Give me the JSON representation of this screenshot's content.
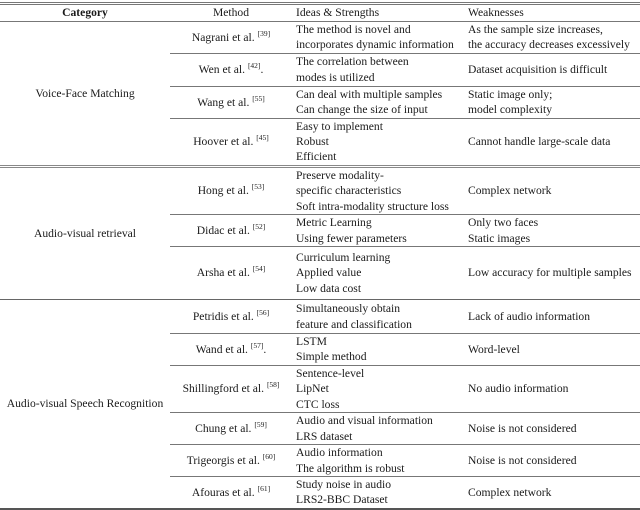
{
  "headers": [
    "Category",
    "Method",
    "Ideas & Strengths",
    "Weaknesses"
  ],
  "groups": [
    {
      "category": "Voice-Face Matching",
      "rows": [
        {
          "method": "Nagrani et al.",
          "ref": "[39]",
          "suffix": "",
          "ideas": [
            "The method is novel and",
            "incorporates dynamic information"
          ],
          "weak": [
            "As the sample size increases,",
            "the accuracy decreases excessively"
          ]
        },
        {
          "method": "Wen et al.",
          "ref": "[42]",
          "suffix": ".",
          "ideas": [
            "The correlation between",
            "modes is utilized"
          ],
          "weak": [
            "Dataset acquisition is difficult"
          ]
        },
        {
          "method": "Wang et al.",
          "ref": "[55]",
          "suffix": "",
          "ideas": [
            "Can deal with multiple samples",
            "Can change the size of input"
          ],
          "weak": [
            "Static image only;",
            "model complexity"
          ]
        },
        {
          "method": "Hoover et al.",
          "ref": "[45]",
          "suffix": "",
          "ideas": [
            "Easy to implement",
            "Robust",
            "Efficient"
          ],
          "weak": [
            "Cannot handle large-scale data"
          ]
        }
      ]
    },
    {
      "category": "Audio-visual retrieval",
      "rows": [
        {
          "method": "Hong et al.",
          "ref": "[53]",
          "suffix": "",
          "ideas": [
            "Preserve modality-",
            "specific characteristics",
            "Soft intra-modality structure loss"
          ],
          "weak": [
            "Complex network"
          ]
        },
        {
          "method": "Didac et al.",
          "ref": "[52]",
          "suffix": "",
          "ideas": [
            "Metric Learning",
            "Using fewer parameters"
          ],
          "weak": [
            "Only two faces",
            "Static images"
          ]
        },
        {
          "method": "Arsha et al.",
          "ref": "[54]",
          "suffix": "",
          "ideas": [
            "Curriculum learning",
            "Applied value",
            "Low data cost"
          ],
          "weak": [
            "Low accuracy for multiple samples"
          ]
        }
      ]
    },
    {
      "category": "Audio-visual Speech Recognition",
      "rows": [
        {
          "method": "Petridis et al.",
          "ref": "[56]",
          "suffix": "",
          "ideas": [
            "Simultaneously obtain",
            "feature and classification"
          ],
          "weak": [
            "Lack of audio information"
          ]
        },
        {
          "method": "Wand et al.",
          "ref": "[57]",
          "suffix": ".",
          "ideas": [
            "LSTM",
            "Simple method"
          ],
          "weak": [
            "Word-level"
          ]
        },
        {
          "method": "Shillingford et al.",
          "ref": "[58]",
          "suffix": "",
          "ideas": [
            "Sentence-level",
            "LipNet",
            "CTC loss"
          ],
          "weak": [
            "No audio information"
          ]
        },
        {
          "method": "Chung et al.",
          "ref": "[59]",
          "suffix": "",
          "ideas": [
            "Audio and visual information",
            "LRS dataset"
          ],
          "weak": [
            "Noise is not considered"
          ]
        },
        {
          "method": "Trigeorgis et al.",
          "ref": "[60]",
          "suffix": "",
          "ideas": [
            "Audio information",
            "The algorithm is robust"
          ],
          "weak": [
            "Noise is not considered"
          ]
        },
        {
          "method": "Afouras et al.",
          "ref": "[61]",
          "suffix": "",
          "ideas": [
            "Study noise in audio",
            "LRS2-BBC Dataset"
          ],
          "weak": [
            "Complex network"
          ]
        }
      ]
    }
  ]
}
